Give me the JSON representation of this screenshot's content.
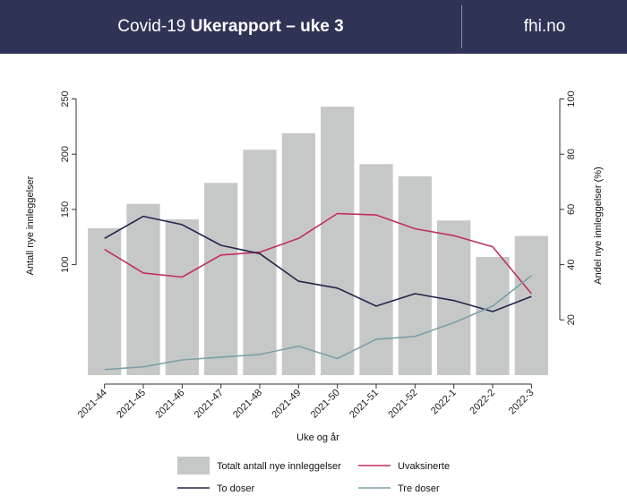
{
  "header": {
    "title_prefix": "Covid-19 ",
    "title_bold": "Ukerapport – uke 3",
    "site": "fhi.no",
    "background_color": "#2f3356"
  },
  "chart_data": {
    "type": "bar",
    "xlabel": "Uke og år",
    "ylabel_left": "Antall nye innleggelser",
    "ylabel_right": "Andel nye innleggelser (%)",
    "categories": [
      "2021-44",
      "2021-45",
      "2021-46",
      "2021-47",
      "2021-48",
      "2021-49",
      "2021-50",
      "2021-51",
      "2021-52",
      "2022-1",
      "2022-2",
      "2022-3"
    ],
    "ylim_left": [
      0,
      265
    ],
    "yticks_left": [
      100,
      150,
      200,
      250
    ],
    "ylim_right": [
      0,
      106
    ],
    "yticks_right": [
      20,
      40,
      60,
      80,
      100
    ],
    "grid": false,
    "legend_position": "bottom",
    "series": [
      {
        "name": "Totalt antall nye innleggelser",
        "kind": "bar",
        "axis": "left",
        "color": "#c6c8c8",
        "values": [
          133,
          155,
          141,
          174,
          204,
          219,
          243,
          191,
          180,
          140,
          107,
          126
        ]
      },
      {
        "name": "Uvaksinerte",
        "kind": "line",
        "axis": "right",
        "color": "#c0305a",
        "values": [
          45.5,
          37,
          35.5,
          43.5,
          44.5,
          49.5,
          58.5,
          58,
          53,
          50.5,
          46.5,
          29.5
        ]
      },
      {
        "name": "To doser",
        "kind": "line",
        "axis": "right",
        "color": "#23264a",
        "values": [
          49.5,
          57.5,
          54.5,
          47,
          44,
          34,
          31.5,
          25,
          29.5,
          27,
          23,
          28.5
        ]
      },
      {
        "name": "Tre doser",
        "kind": "line",
        "axis": "right",
        "color": "#7aa1a6",
        "values": [
          2,
          3,
          5.5,
          6.5,
          7.5,
          10.5,
          6,
          13,
          14,
          19,
          25,
          36
        ]
      }
    ]
  }
}
